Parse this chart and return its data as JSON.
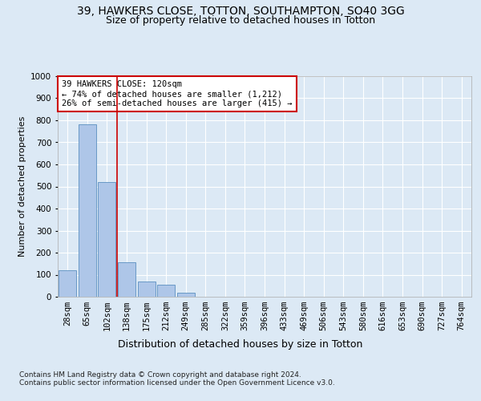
{
  "title1": "39, HAWKERS CLOSE, TOTTON, SOUTHAMPTON, SO40 3GG",
  "title2": "Size of property relative to detached houses in Totton",
  "xlabel": "Distribution of detached houses by size in Totton",
  "ylabel": "Number of detached properties",
  "categories": [
    "28sqm",
    "65sqm",
    "102sqm",
    "138sqm",
    "175sqm",
    "212sqm",
    "249sqm",
    "285sqm",
    "322sqm",
    "359sqm",
    "396sqm",
    "433sqm",
    "469sqm",
    "506sqm",
    "543sqm",
    "580sqm",
    "616sqm",
    "653sqm",
    "690sqm",
    "727sqm",
    "764sqm"
  ],
  "values": [
    120,
    780,
    520,
    155,
    70,
    55,
    20,
    0,
    0,
    0,
    0,
    0,
    0,
    0,
    0,
    0,
    0,
    0,
    0,
    0,
    0
  ],
  "bar_color": "#aec6e8",
  "bar_edge_color": "#5a8fc0",
  "vline_color": "#cc0000",
  "annotation_text": "39 HAWKERS CLOSE: 120sqm\n← 74% of detached houses are smaller (1,212)\n26% of semi-detached houses are larger (415) →",
  "annotation_box_color": "#ffffff",
  "annotation_box_edge": "#cc0000",
  "bg_color": "#dce9f5",
  "plot_bg_color": "#dce9f5",
  "grid_color": "#ffffff",
  "ylim": [
    0,
    1000
  ],
  "yticks": [
    0,
    100,
    200,
    300,
    400,
    500,
    600,
    700,
    800,
    900,
    1000
  ],
  "footnote1": "Contains HM Land Registry data © Crown copyright and database right 2024.",
  "footnote2": "Contains public sector information licensed under the Open Government Licence v3.0.",
  "title1_fontsize": 10,
  "title2_fontsize": 9,
  "xlabel_fontsize": 9,
  "ylabel_fontsize": 8,
  "tick_fontsize": 7.5,
  "annot_fontsize": 7.5
}
